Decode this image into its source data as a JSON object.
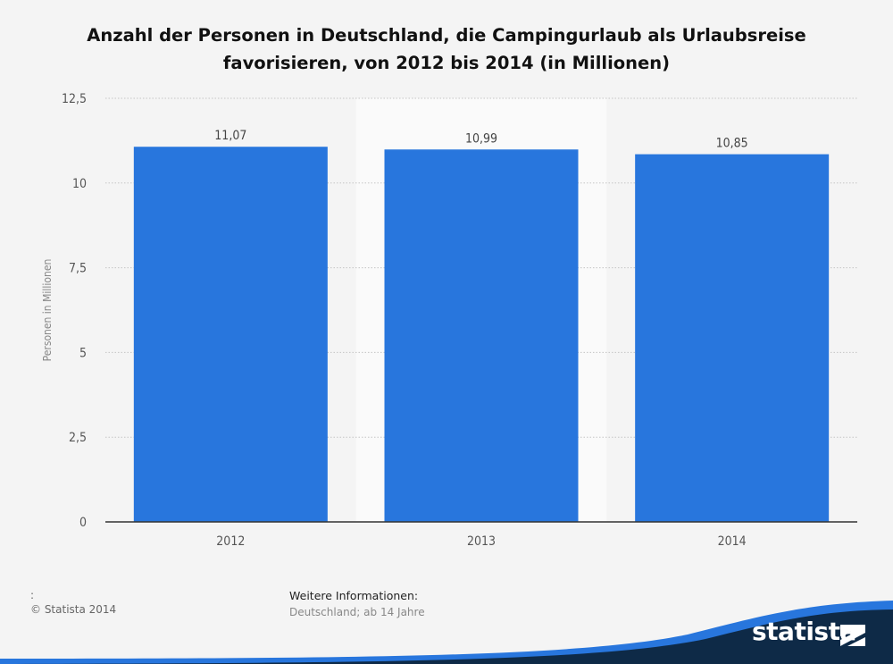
{
  "chart_data": {
    "type": "bar",
    "title": "Anzahl der Personen in Deutschland, die Campingurlaub als Urlaubsreise favorisieren, von 2012 bis 2014 (in Millionen)",
    "categories": [
      "2012",
      "2013",
      "2014"
    ],
    "values": [
      11.07,
      10.99,
      10.85
    ],
    "value_labels": [
      "11,07",
      "10,99",
      "10,85"
    ],
    "ylabel": "Personen in Millionen",
    "xlabel": "",
    "ylim": [
      0,
      12.5
    ],
    "yticks": [
      0,
      2.5,
      5,
      7.5,
      10,
      12.5
    ],
    "ytick_labels": [
      "0",
      "2,5",
      "5",
      "7,5",
      "10",
      "12,5"
    ],
    "grid": true,
    "highlight_category": "2013",
    "bar_color": "#2876dd",
    "highlight_band_color": "#fafafa"
  },
  "footer": {
    "source_colon": ":",
    "copyright": "© Statista 2014",
    "info_heading": "Weitere Informationen:",
    "info_text": "Deutschland; ab 14 Jahre"
  },
  "brand": {
    "name": "statista",
    "icon": "statista-logo-icon",
    "colors": {
      "dark": "#0e2a47",
      "accent": "#2876dd"
    }
  }
}
